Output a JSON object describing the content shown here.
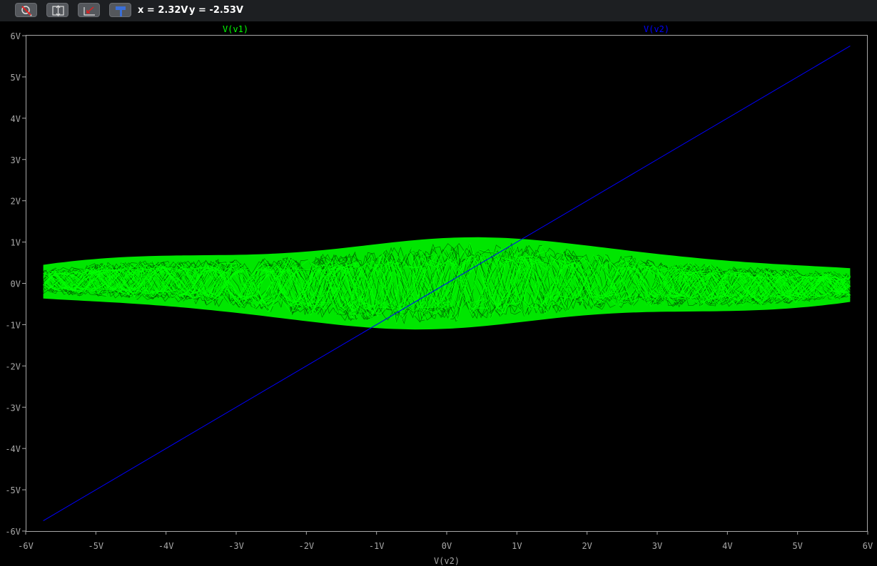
{
  "toolbar": {
    "buttons": [
      {
        "name": "zoom-cancel-button",
        "icon": "zoom-cancel-icon"
      },
      {
        "name": "autorange-button",
        "icon": "autorange-icon"
      },
      {
        "name": "zoom-back-button",
        "icon": "zoom-back-icon"
      },
      {
        "name": "measure-button",
        "icon": "hammer-icon"
      }
    ],
    "cursor_x": "x = 2.32V",
    "cursor_y": "y = -2.53V"
  },
  "chart_data": {
    "type": "line",
    "xlabel": "V(v2)",
    "xlim": [
      -6,
      6
    ],
    "ylim": [
      -6,
      6
    ],
    "x_ticks": [
      "-6V",
      "-5V",
      "-4V",
      "-3V",
      "-2V",
      "-1V",
      "0V",
      "1V",
      "2V",
      "3V",
      "4V",
      "5V",
      "6V"
    ],
    "y_ticks": [
      "6V",
      "5V",
      "4V",
      "3V",
      "2V",
      "1V",
      "0V",
      "-1V",
      "-2V",
      "-3V",
      "-4V",
      "-5V",
      "-6V"
    ],
    "grid": false,
    "series": [
      {
        "name": "V(v1)",
        "color": "#00ff00",
        "style": "chaotic double-scroll attractor",
        "x_range": [
          -5.75,
          5.75
        ],
        "y_range": [
          -1.1,
          1.1
        ]
      },
      {
        "name": "V(v2)",
        "color": "#0000ff",
        "x": [
          -5.75,
          5.75
        ],
        "y": [
          -5.75,
          5.75
        ]
      }
    ]
  }
}
